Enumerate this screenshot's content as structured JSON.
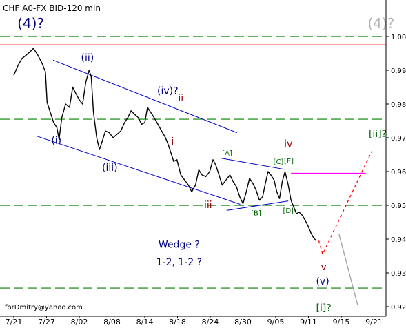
{
  "chart_data": {
    "type": "line",
    "title": "CHF A0-FX BID-120 min",
    "footer": "forDmitry@yahoo.com",
    "x_ticks": [
      "7/21",
      "7/27",
      "8/02",
      "8/08",
      "8/14",
      "8/18",
      "8/24",
      "8/30",
      "9/05",
      "9/11",
      "9/15",
      "9/21"
    ],
    "y_ticks": [
      "1.00",
      "0.99",
      "0.98",
      "0.97",
      "0.96",
      "0.95",
      "0.94",
      "0.93",
      "0.92"
    ],
    "ylim": [
      0.9175,
      1.0075
    ],
    "series": [
      {
        "values": [
          [
            0.0,
            0.9885
          ],
          [
            0.8,
            0.9915
          ],
          [
            1.5,
            0.9935
          ],
          [
            2.3,
            0.9945
          ],
          [
            3.0,
            0.9955
          ],
          [
            3.6,
            0.9965
          ],
          [
            4.4,
            0.9945
          ],
          [
            5.2,
            0.992
          ],
          [
            5.8,
            0.9895
          ],
          [
            6.1,
            0.9805
          ],
          [
            6.7,
            0.9775
          ],
          [
            7.3,
            0.9745
          ],
          [
            7.9,
            0.973
          ],
          [
            8.3,
            0.9695
          ],
          [
            8.8,
            0.976
          ],
          [
            9.5,
            0.98
          ],
          [
            10.2,
            0.979
          ],
          [
            10.8,
            0.985
          ],
          [
            11.4,
            0.983
          ],
          [
            12.1,
            0.981
          ],
          [
            12.6,
            0.98
          ],
          [
            13.2,
            0.9865
          ],
          [
            13.8,
            0.99
          ],
          [
            14.2,
            0.988
          ],
          [
            14.6,
            0.9775
          ],
          [
            15.2,
            0.97
          ],
          [
            15.7,
            0.9665
          ],
          [
            16.2,
            0.969
          ],
          [
            16.8,
            0.972
          ],
          [
            17.5,
            0.9715
          ],
          [
            18.2,
            0.97
          ],
          [
            18.9,
            0.971
          ],
          [
            19.6,
            0.972
          ],
          [
            20.3,
            0.9745
          ],
          [
            20.9,
            0.976
          ],
          [
            21.5,
            0.978
          ],
          [
            22.1,
            0.977
          ],
          [
            22.8,
            0.976
          ],
          [
            23.4,
            0.974
          ],
          [
            24.0,
            0.9745
          ],
          [
            24.5,
            0.979
          ],
          [
            25.1,
            0.9775
          ],
          [
            25.7,
            0.976
          ],
          [
            26.4,
            0.974
          ],
          [
            27.1,
            0.972
          ],
          [
            27.8,
            0.97
          ],
          [
            28.3,
            0.968
          ],
          [
            28.8,
            0.9655
          ],
          [
            29.3,
            0.963
          ],
          [
            29.9,
            0.9635
          ],
          [
            30.6,
            0.959
          ],
          [
            31.3,
            0.9575
          ],
          [
            32.0,
            0.956
          ],
          [
            32.6,
            0.954
          ],
          [
            33.3,
            0.956
          ],
          [
            33.9,
            0.9605
          ],
          [
            34.5,
            0.959
          ],
          [
            35.2,
            0.9585
          ],
          [
            35.9,
            0.96
          ],
          [
            36.5,
            0.9635
          ],
          [
            37.0,
            0.962
          ],
          [
            37.6,
            0.959
          ],
          [
            38.2,
            0.956
          ],
          [
            38.9,
            0.9575
          ],
          [
            39.6,
            0.959
          ],
          [
            40.2,
            0.957
          ],
          [
            40.8,
            0.9555
          ],
          [
            41.4,
            0.9525
          ],
          [
            42.0,
            0.9505
          ],
          [
            42.6,
            0.954
          ],
          [
            43.2,
            0.958
          ],
          [
            43.8,
            0.9565
          ],
          [
            44.4,
            0.9545
          ],
          [
            45.0,
            0.9515
          ],
          [
            45.6,
            0.9525
          ],
          [
            46.1,
            0.9565
          ],
          [
            46.6,
            0.96
          ],
          [
            47.1,
            0.959
          ],
          [
            47.7,
            0.9575
          ],
          [
            48.2,
            0.954
          ],
          [
            48.7,
            0.952
          ],
          [
            49.2,
            0.957
          ],
          [
            49.7,
            0.96
          ],
          [
            50.3,
            0.956
          ],
          [
            50.8,
            0.9515
          ],
          [
            51.3,
            0.9495
          ],
          [
            51.8,
            0.9475
          ],
          [
            52.3,
            0.948
          ],
          [
            52.9,
            0.947
          ],
          [
            53.4,
            0.9455
          ],
          [
            53.9,
            0.944
          ],
          [
            54.4,
            0.942
          ],
          [
            54.9,
            0.9405
          ],
          [
            55.4,
            0.9395
          ]
        ]
      }
    ],
    "reference_lines": [
      {
        "value": 1.0,
        "color": "#008000",
        "style": "dashed"
      },
      {
        "value": 0.9975,
        "color": "#ff0000",
        "style": "solid"
      },
      {
        "value": 0.9755,
        "color": "#008000",
        "style": "dashed"
      },
      {
        "value": 0.95,
        "color": "#008000",
        "style": "dashed"
      },
      {
        "value": 0.9255,
        "color": "#008000",
        "style": "dashed"
      }
    ],
    "magenta_level": {
      "value": 0.9595,
      "color": "#ff00ff",
      "x_from": 50.8,
      "x_to": 64.5
    },
    "channel_lines": [
      {
        "from": [
          7.2,
          0.993
        ],
        "to": [
          40.9,
          0.9715
        ]
      },
      {
        "from": [
          4.2,
          0.9705
        ],
        "to": [
          41.5,
          0.9503
        ]
      },
      {
        "from": [
          37.8,
          0.964
        ],
        "to": [
          49.8,
          0.9606
        ]
      },
      {
        "from": [
          39.0,
          0.9485
        ],
        "to": [
          50.3,
          0.9513
        ]
      }
    ],
    "projections": [
      {
        "color": "#ff0000",
        "style": "dotted",
        "points": [
          [
            55.9,
            0.9395
          ],
          [
            56.6,
            0.9355
          ],
          [
            65.6,
            0.966
          ]
        ]
      },
      {
        "color": "#a0a0a0",
        "style": "solid",
        "points": [
          [
            59.6,
            0.9415
          ],
          [
            63.0,
            0.9205
          ]
        ]
      }
    ],
    "wave_labels": [
      {
        "text": "(4)?",
        "x": 3.1,
        "y": 1.0025,
        "color": "#000080",
        "size": 20
      },
      {
        "text": "(4)?",
        "x": 67.3,
        "y": 1.0025,
        "color": "#b4b4b4",
        "size": 20
      },
      {
        "text": "(ii)",
        "x": 13.5,
        "y": 0.9928,
        "color": "#000080",
        "size": 14
      },
      {
        "text": "(iv)?",
        "x": 28.2,
        "y": 0.983,
        "color": "#000080",
        "size": 14
      },
      {
        "text": "ii",
        "x": 30.6,
        "y": 0.9808,
        "color": "#8b0000",
        "size": 14
      },
      {
        "text": "i",
        "x": 29.1,
        "y": 0.968,
        "color": "#8b0000",
        "size": 14
      },
      {
        "text": "(i)",
        "x": 7.8,
        "y": 0.9683,
        "color": "#000080",
        "size": 14
      },
      {
        "text": "(iii)",
        "x": 17.6,
        "y": 0.9602,
        "color": "#000080",
        "size": 14
      },
      {
        "text": "iii",
        "x": 35.6,
        "y": 0.9492,
        "color": "#8b0000",
        "size": 14
      },
      {
        "text": "[A]",
        "x": 39.1,
        "y": 0.9648,
        "color": "#006400",
        "size": 10
      },
      {
        "text": "[B]",
        "x": 44.4,
        "y": 0.947,
        "color": "#006400",
        "size": 10
      },
      {
        "text": "[C]",
        "x": 48.5,
        "y": 0.9622,
        "color": "#006400",
        "size": 10
      },
      {
        "text": "[E]",
        "x": 50.4,
        "y": 0.9625,
        "color": "#006400",
        "size": 10
      },
      {
        "text": "[D]",
        "x": 50.3,
        "y": 0.9478,
        "color": "#006400",
        "size": 10
      },
      {
        "text": "iv",
        "x": 50.3,
        "y": 0.9672,
        "color": "#8b0000",
        "size": 14
      },
      {
        "text": "v",
        "x": 56.8,
        "y": 0.9308,
        "color": "#8b0000",
        "size": 14
      },
      {
        "text": "(v)",
        "x": 56.6,
        "y": 0.9265,
        "color": "#000080",
        "size": 14
      },
      {
        "text": "[i]?",
        "x": 56.8,
        "y": 0.9187,
        "color": "#006400",
        "size": 14
      },
      {
        "text": "[ii]?",
        "x": 66.7,
        "y": 0.9702,
        "color": "#006400",
        "size": 14
      },
      {
        "text": "Wedge ?",
        "x": 30.3,
        "y": 0.9375,
        "color": "#000080",
        "size": 14
      },
      {
        "text": "1-2, 1-2 ?",
        "x": 30.3,
        "y": 0.9322,
        "color": "#000080",
        "size": 14
      }
    ]
  }
}
